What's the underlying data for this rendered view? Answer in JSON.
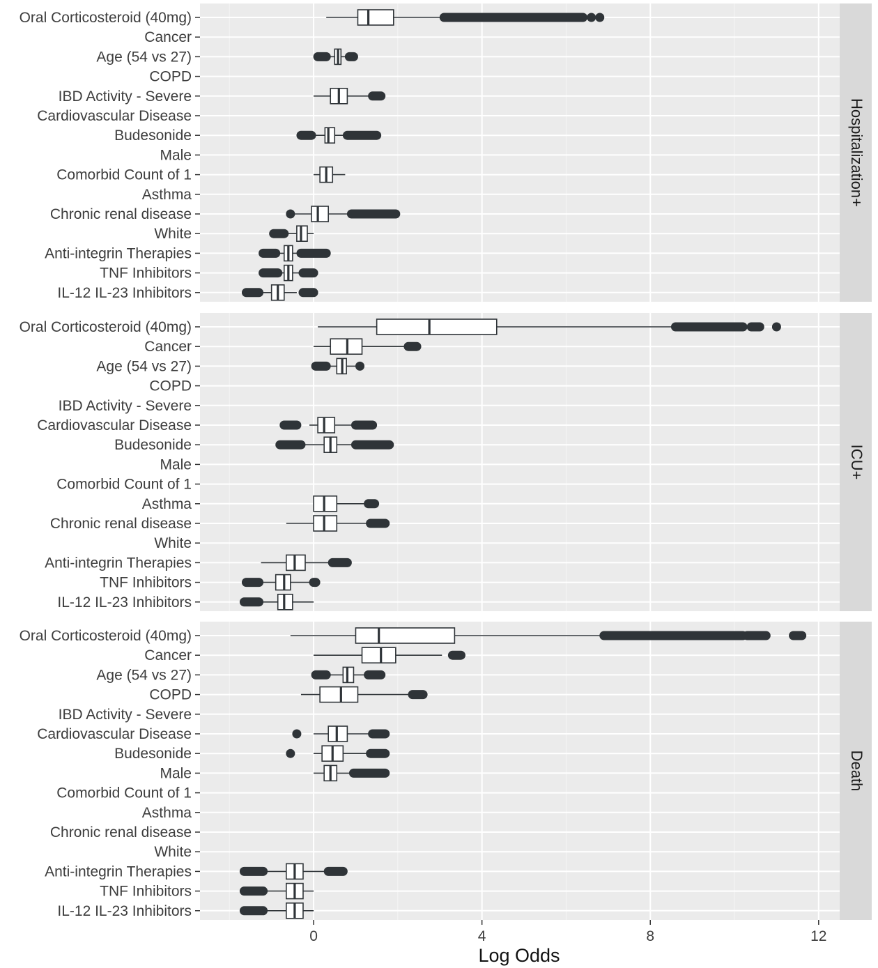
{
  "chart_data": {
    "type": "boxplot",
    "xlabel": "Log Odds",
    "xlim": [
      -2.7,
      12.5
    ],
    "xticks": [
      0,
      4,
      8,
      12
    ],
    "grid": true,
    "categories": [
      "Oral Corticosteroid (40mg)",
      "Cancer",
      "Age (54 vs 27)",
      "COPD",
      "IBD Activity - Severe",
      "Cardiovascular Disease",
      "Budesonide",
      "Male",
      "Comorbid Count of 1",
      "Asthma",
      "Chronic renal disease",
      "White",
      "Anti-integrin Therapies",
      "TNF Inhibitors",
      "IL-12 IL-23 Inhibitors"
    ],
    "panels": [
      {
        "name": "Hospitalization+",
        "boxes": [
          {
            "category": "Oral Corticosteroid (40mg)",
            "lw": 0.3,
            "q1": 1.05,
            "median": 1.3,
            "q3": 1.9,
            "uw": 3.1,
            "outliers": [
              [
                3.1,
                6.4
              ],
              [
                6.6,
                6.6
              ],
              [
                6.8,
                6.8
              ]
            ]
          },
          {
            "category": "Age (54 vs 27)",
            "lw": 0.3,
            "q1": 0.5,
            "median": 0.58,
            "q3": 0.65,
            "uw": 0.85,
            "outliers": [
              [
                0.1,
                0.3
              ],
              [
                0.85,
                0.95
              ]
            ]
          },
          {
            "category": "IBD Activity - Severe",
            "lw": 0.0,
            "q1": 0.4,
            "median": 0.6,
            "q3": 0.8,
            "uw": 1.4,
            "outliers": [
              [
                1.4,
                1.6
              ]
            ]
          },
          {
            "category": "Budesonide",
            "lw": 0.0,
            "q1": 0.27,
            "median": 0.35,
            "q3": 0.5,
            "uw": 0.8,
            "outliers": [
              [
                -0.3,
                -0.05
              ],
              [
                0.8,
                1.5
              ]
            ]
          },
          {
            "category": "Comorbid Count of 1",
            "lw": 0.0,
            "q1": 0.15,
            "median": 0.3,
            "q3": 0.45,
            "uw": 0.75,
            "outliers": []
          },
          {
            "category": "Chronic renal disease",
            "lw": -0.5,
            "q1": -0.05,
            "median": 0.1,
            "q3": 0.35,
            "uw": 0.9,
            "outliers": [
              [
                -0.55,
                -0.55
              ],
              [
                0.9,
                1.95
              ]
            ]
          },
          {
            "category": "White",
            "lw": -0.7,
            "q1": -0.4,
            "median": -0.3,
            "q3": -0.15,
            "uw": 0.0,
            "outliers": [
              [
                -0.95,
                -0.7
              ]
            ]
          },
          {
            "category": "Anti-integrin Therapies",
            "lw": -1.2,
            "q1": -0.7,
            "median": -0.6,
            "q3": -0.5,
            "uw": -0.3,
            "outliers": [
              [
                -1.2,
                -0.9
              ],
              [
                -0.3,
                0.3
              ]
            ]
          },
          {
            "category": "TNF Inhibitors",
            "lw": -1.2,
            "q1": -0.7,
            "median": -0.6,
            "q3": -0.5,
            "uw": -0.25,
            "outliers": [
              [
                -1.2,
                -0.85
              ],
              [
                -0.25,
                0.0
              ]
            ]
          },
          {
            "category": "IL-12 IL-23 Inhibitors",
            "lw": -1.6,
            "q1": -1.0,
            "median": -0.85,
            "q3": -0.7,
            "uw": -0.4,
            "outliers": [
              [
                -1.6,
                -1.3
              ],
              [
                -0.25,
                0.0
              ]
            ]
          }
        ]
      },
      {
        "name": "ICU+",
        "boxes": [
          {
            "category": "Oral Corticosteroid (40mg)",
            "lw": 0.1,
            "q1": 1.5,
            "median": 2.75,
            "q3": 4.35,
            "uw": 8.6,
            "outliers": [
              [
                8.6,
                10.2
              ],
              [
                10.4,
                10.6
              ],
              [
                11.0,
                11.0
              ]
            ]
          },
          {
            "category": "Cancer",
            "lw": 0.0,
            "q1": 0.4,
            "median": 0.8,
            "q3": 1.15,
            "uw": 2.2,
            "outliers": [
              [
                2.25,
                2.45
              ]
            ]
          },
          {
            "category": "Age (54 vs 27)",
            "lw": 0.15,
            "q1": 0.55,
            "median": 0.68,
            "q3": 0.78,
            "uw": 1.0,
            "outliers": [
              [
                0.05,
                0.3
              ],
              [
                1.1,
                1.1
              ]
            ]
          },
          {
            "category": "Cardiovascular Disease",
            "lw": -0.1,
            "q1": 0.1,
            "median": 0.25,
            "q3": 0.5,
            "uw": 1.0,
            "outliers": [
              [
                -0.7,
                -0.4
              ],
              [
                1.0,
                1.4
              ]
            ]
          },
          {
            "category": "Budesonide",
            "lw": -0.3,
            "q1": 0.25,
            "median": 0.4,
            "q3": 0.55,
            "uw": 1.0,
            "outliers": [
              [
                -0.8,
                -0.3
              ],
              [
                1.0,
                1.8
              ]
            ]
          },
          {
            "category": "Asthma",
            "lw": 0.0,
            "q1": 0.0,
            "median": 0.25,
            "q3": 0.55,
            "uw": 1.3,
            "outliers": [
              [
                1.3,
                1.45
              ]
            ]
          },
          {
            "category": "Chronic renal disease",
            "lw": -0.65,
            "q1": 0.0,
            "median": 0.25,
            "q3": 0.55,
            "uw": 1.35,
            "outliers": [
              [
                1.35,
                1.7
              ]
            ]
          },
          {
            "category": "Anti-integrin Therapies",
            "lw": -1.25,
            "q1": -0.65,
            "median": -0.45,
            "q3": -0.2,
            "uw": 0.45,
            "outliers": [
              [
                0.45,
                0.8
              ]
            ]
          },
          {
            "category": "TNF Inhibitors",
            "lw": -1.3,
            "q1": -0.9,
            "median": -0.7,
            "q3": -0.55,
            "uw": 0.0,
            "outliers": [
              [
                -1.6,
                -1.3
              ],
              [
                0.0,
                0.05
              ]
            ]
          },
          {
            "category": "IL-12 IL-23 Inhibitors",
            "lw": -1.25,
            "q1": -0.85,
            "median": -0.7,
            "q3": -0.5,
            "uw": 0.0,
            "outliers": [
              [
                -1.65,
                -1.3
              ]
            ]
          }
        ]
      },
      {
        "name": "Death",
        "boxes": [
          {
            "category": "Oral Corticosteroid (40mg)",
            "lw": -0.55,
            "q1": 1.0,
            "median": 1.55,
            "q3": 3.35,
            "uw": 6.9,
            "outliers": [
              [
                6.9,
                10.2
              ],
              [
                10.3,
                10.75
              ],
              [
                11.4,
                11.6
              ]
            ]
          },
          {
            "category": "Cancer",
            "lw": 0.0,
            "q1": 1.15,
            "median": 1.6,
            "q3": 1.95,
            "uw": 3.05,
            "outliers": [
              [
                3.3,
                3.5
              ]
            ]
          },
          {
            "category": "Age (54 vs 27)",
            "lw": 0.35,
            "q1": 0.7,
            "median": 0.8,
            "q3": 0.95,
            "uw": 1.3,
            "outliers": [
              [
                0.05,
                0.3
              ],
              [
                1.3,
                1.6
              ]
            ]
          },
          {
            "category": "COPD",
            "lw": -0.3,
            "q1": 0.15,
            "median": 0.65,
            "q3": 1.05,
            "uw": 2.3,
            "outliers": [
              [
                2.35,
                2.6
              ]
            ]
          },
          {
            "category": "Cardiovascular Disease",
            "lw": 0.0,
            "q1": 0.35,
            "median": 0.55,
            "q3": 0.8,
            "uw": 1.4,
            "outliers": [
              [
                -0.4,
                -0.4
              ],
              [
                1.4,
                1.7
              ]
            ]
          },
          {
            "category": "Budesonide",
            "lw": 0.0,
            "q1": 0.2,
            "median": 0.45,
            "q3": 0.7,
            "uw": 1.35,
            "outliers": [
              [
                -0.55,
                -0.55
              ],
              [
                1.35,
                1.7
              ]
            ]
          },
          {
            "category": "Male",
            "lw": 0.0,
            "q1": 0.25,
            "median": 0.4,
            "q3": 0.55,
            "uw": 0.95,
            "outliers": [
              [
                0.95,
                1.7
              ]
            ]
          },
          {
            "category": "Anti-integrin Therapies",
            "lw": -1.2,
            "q1": -0.65,
            "median": -0.45,
            "q3": -0.25,
            "uw": 0.35,
            "outliers": [
              [
                -1.65,
                -1.2
              ],
              [
                0.35,
                0.7
              ]
            ]
          },
          {
            "category": "TNF Inhibitors",
            "lw": -1.2,
            "q1": -0.65,
            "median": -0.45,
            "q3": -0.25,
            "uw": 0.0,
            "outliers": [
              [
                -1.65,
                -1.2
              ]
            ]
          },
          {
            "category": "IL-12 IL-23 Inhibitors",
            "lw": -1.2,
            "q1": -0.65,
            "median": -0.45,
            "q3": -0.25,
            "uw": 0.0,
            "outliers": [
              [
                -1.65,
                -1.2
              ]
            ]
          }
        ]
      }
    ]
  },
  "colors": {
    "panel_bg": "#ebebeb",
    "strip_bg": "#d9d9d9",
    "grid_major": "#ffffff",
    "box_fill": "#ffffff",
    "ink": "#2f3438"
  }
}
